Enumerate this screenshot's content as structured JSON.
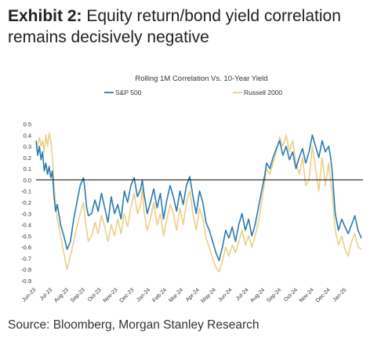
{
  "exhibit": {
    "label": "Exhibit 2:",
    "title": "Equity return/bond yield correlation remains decisively negative"
  },
  "source": "Source: Bloomberg, Morgan Stanley Research",
  "chart_data": {
    "type": "line",
    "title": "Rolling 1M Correlation Vs. 10-Year Yield",
    "xlabel": "",
    "ylabel": "",
    "ylim": [
      -0.9,
      0.5
    ],
    "yticks": [
      0.5,
      0.4,
      0.3,
      0.2,
      0.1,
      0.0,
      -0.1,
      -0.2,
      -0.3,
      -0.4,
      -0.5,
      -0.6,
      -0.7,
      -0.8,
      -0.9
    ],
    "ytick_labels": [
      "0.5",
      "0.4",
      "0.3",
      "0.2",
      "0.1",
      "0.0",
      "-0.1",
      "-0.2",
      "-0.3",
      "-0.4",
      "-0.5",
      "-0.6",
      "-0.7",
      "-0.8",
      "-0.9"
    ],
    "xticks": [
      "Jun-23",
      "Jul-23",
      "Aug-23",
      "Sep-23",
      "Oct-23",
      "Nov-23",
      "Dec-23",
      "Jan-24",
      "Feb-24",
      "Mar-24",
      "Apr-24",
      "May-24",
      "Jun-24",
      "Jul-24",
      "Aug-24",
      "Sep-24",
      "Oct-24",
      "Nov-24",
      "Dec-24",
      "Jan-25"
    ],
    "x_range": [
      0,
      20
    ],
    "legend_position": "top",
    "grid": false,
    "zero_line": true,
    "series": [
      {
        "name": "S&P 500",
        "color": "#2b7bb0",
        "x": [
          0.0,
          0.1,
          0.2,
          0.3,
          0.4,
          0.5,
          0.6,
          0.7,
          0.8,
          0.9,
          1.0,
          1.1,
          1.2,
          1.3,
          1.5,
          1.7,
          1.9,
          2.1,
          2.3,
          2.5,
          2.7,
          2.9,
          3.0,
          3.1,
          3.2,
          3.4,
          3.6,
          3.8,
          4.0,
          4.2,
          4.4,
          4.6,
          4.8,
          5.0,
          5.2,
          5.4,
          5.6,
          5.8,
          6.0,
          6.2,
          6.4,
          6.5,
          6.6,
          6.8,
          7.0,
          7.2,
          7.4,
          7.6,
          7.8,
          8.0,
          8.2,
          8.4,
          8.6,
          8.8,
          9.0,
          9.2,
          9.4,
          9.6,
          9.8,
          10.0,
          10.2,
          10.4,
          10.6,
          10.8,
          11.0,
          11.2,
          11.4,
          11.6,
          11.8,
          12.0,
          12.2,
          12.4,
          12.6,
          12.8,
          13.0,
          13.2,
          13.4,
          13.6,
          13.8,
          14.0,
          14.1,
          14.3,
          14.5,
          14.7,
          14.9,
          15.1,
          15.3,
          15.5,
          15.7,
          15.9,
          16.1,
          16.3,
          16.5,
          16.7,
          16.9,
          17.1,
          17.3,
          17.5,
          17.7,
          17.9,
          18.0,
          18.1,
          18.3,
          18.5,
          18.7,
          18.9,
          19.1,
          19.3,
          19.5,
          19.7,
          19.9
        ],
        "values": [
          0.35,
          0.22,
          0.3,
          0.18,
          0.25,
          0.08,
          0.15,
          0.05,
          0.12,
          0.02,
          0.08,
          -0.15,
          -0.28,
          -0.22,
          -0.4,
          -0.5,
          -0.62,
          -0.55,
          -0.35,
          -0.2,
          -0.05,
          0.02,
          -0.1,
          -0.25,
          -0.32,
          -0.3,
          -0.18,
          -0.28,
          -0.12,
          -0.25,
          -0.38,
          -0.15,
          -0.3,
          -0.22,
          -0.35,
          -0.1,
          -0.2,
          -0.05,
          0.02,
          -0.15,
          -0.08,
          0.0,
          -0.12,
          -0.3,
          -0.2,
          -0.08,
          -0.25,
          -0.12,
          -0.35,
          -0.18,
          -0.05,
          -0.15,
          -0.28,
          -0.1,
          -0.22,
          -0.05,
          0.03,
          -0.15,
          -0.3,
          -0.1,
          -0.2,
          -0.38,
          -0.45,
          -0.55,
          -0.65,
          -0.72,
          -0.6,
          -0.45,
          -0.52,
          -0.42,
          -0.55,
          -0.4,
          -0.3,
          -0.45,
          -0.35,
          -0.5,
          -0.4,
          -0.25,
          -0.1,
          0.05,
          0.15,
          0.1,
          0.2,
          0.28,
          0.35,
          0.22,
          0.3,
          0.18,
          0.25,
          0.1,
          0.2,
          0.28,
          0.15,
          0.25,
          0.4,
          0.3,
          0.2,
          0.35,
          0.25,
          0.3,
          0.22,
          0.1,
          -0.3,
          -0.45,
          -0.35,
          -0.42,
          -0.48,
          -0.4,
          -0.32,
          -0.45,
          -0.52
        ]
      },
      {
        "name": "Russell 2000",
        "color": "#ead08a",
        "x": [
          0.0,
          0.1,
          0.2,
          0.3,
          0.4,
          0.5,
          0.6,
          0.7,
          0.8,
          0.9,
          1.0,
          1.1,
          1.2,
          1.3,
          1.5,
          1.7,
          1.9,
          2.1,
          2.3,
          2.5,
          2.7,
          2.9,
          3.0,
          3.1,
          3.2,
          3.4,
          3.6,
          3.8,
          4.0,
          4.2,
          4.4,
          4.6,
          4.8,
          5.0,
          5.2,
          5.4,
          5.6,
          5.8,
          6.0,
          6.2,
          6.4,
          6.5,
          6.6,
          6.8,
          7.0,
          7.2,
          7.4,
          7.6,
          7.8,
          8.0,
          8.2,
          8.4,
          8.6,
          8.8,
          9.0,
          9.2,
          9.4,
          9.6,
          9.8,
          10.0,
          10.2,
          10.4,
          10.6,
          10.8,
          11.0,
          11.2,
          11.4,
          11.6,
          11.8,
          12.0,
          12.2,
          12.4,
          12.6,
          12.8,
          13.0,
          13.2,
          13.4,
          13.6,
          13.8,
          14.0,
          14.1,
          14.3,
          14.5,
          14.7,
          14.9,
          15.1,
          15.3,
          15.5,
          15.7,
          15.9,
          16.1,
          16.3,
          16.5,
          16.7,
          16.9,
          17.1,
          17.3,
          17.5,
          17.7,
          17.9,
          18.0,
          18.1,
          18.3,
          18.5,
          18.7,
          18.9,
          19.1,
          19.3,
          19.5,
          19.7,
          19.9
        ],
        "values": [
          0.28,
          0.32,
          0.38,
          0.3,
          0.35,
          0.25,
          0.4,
          0.3,
          0.42,
          0.35,
          0.2,
          -0.05,
          -0.2,
          -0.35,
          -0.5,
          -0.65,
          -0.8,
          -0.68,
          -0.55,
          -0.42,
          -0.3,
          -0.2,
          -0.35,
          -0.45,
          -0.55,
          -0.5,
          -0.38,
          -0.48,
          -0.32,
          -0.42,
          -0.55,
          -0.4,
          -0.5,
          -0.35,
          -0.48,
          -0.3,
          -0.42,
          -0.25,
          -0.12,
          -0.3,
          -0.22,
          -0.08,
          -0.28,
          -0.45,
          -0.35,
          -0.2,
          -0.4,
          -0.3,
          -0.5,
          -0.35,
          -0.22,
          -0.3,
          -0.45,
          -0.25,
          -0.4,
          -0.2,
          -0.1,
          -0.3,
          -0.45,
          -0.25,
          -0.35,
          -0.52,
          -0.6,
          -0.7,
          -0.78,
          -0.82,
          -0.72,
          -0.6,
          -0.68,
          -0.58,
          -0.65,
          -0.55,
          -0.45,
          -0.58,
          -0.5,
          -0.6,
          -0.5,
          -0.38,
          -0.2,
          0.0,
          0.1,
          0.05,
          0.15,
          0.25,
          0.38,
          0.3,
          0.4,
          0.25,
          0.35,
          0.15,
          0.05,
          0.2,
          -0.05,
          0.0,
          0.3,
          0.1,
          -0.1,
          0.2,
          -0.05,
          0.15,
          0.0,
          -0.1,
          -0.45,
          -0.58,
          -0.5,
          -0.62,
          -0.68,
          -0.55,
          -0.48,
          -0.6,
          -0.62
        ]
      }
    ]
  }
}
